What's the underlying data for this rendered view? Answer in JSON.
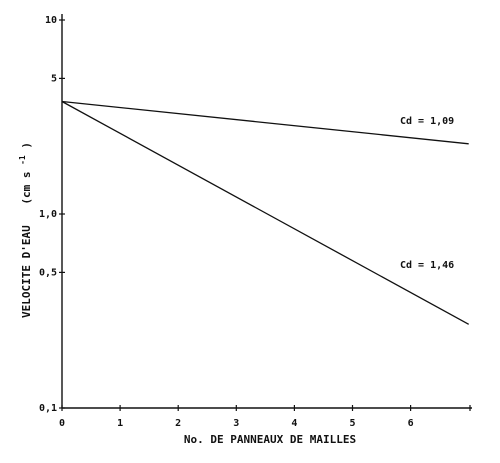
{
  "chart_data": {
    "type": "line",
    "xlabel": "No. DE PANNEAUX DE MAILLES",
    "ylabel": "VELOCITE D'EAU",
    "ylabel_unit": "(cm s",
    "ylabel_unit_exp": "-1",
    "ylabel_unit_close": ")",
    "yscale": "log",
    "xlim": [
      0,
      7
    ],
    "ylim": [
      0.1,
      10
    ],
    "x_ticks": [
      0,
      1,
      2,
      3,
      4,
      5,
      6
    ],
    "x_tick_labels": [
      "0",
      "1",
      "2",
      "3",
      "4",
      "5",
      "6"
    ],
    "y_ticks": [
      0.1,
      0.5,
      1.0,
      5,
      10
    ],
    "y_tick_labels": [
      "0,1",
      "0,5",
      "1,0",
      "5",
      "10"
    ],
    "grid": false,
    "series": [
      {
        "name": "Cd = 1,09",
        "x": [
          0,
          7
        ],
        "y": [
          3.8,
          2.3
        ]
      },
      {
        "name": "Cd = 1,46",
        "x": [
          0,
          7
        ],
        "y": [
          3.8,
          0.27
        ]
      }
    ]
  }
}
